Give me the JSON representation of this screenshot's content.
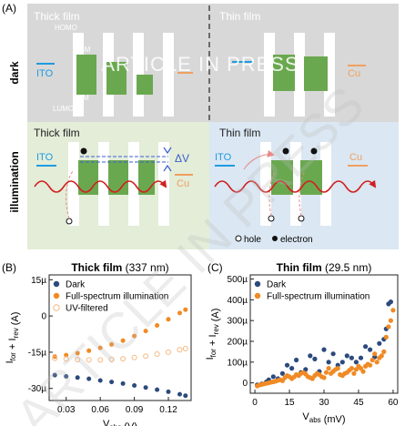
{
  "panel_a": {
    "label": "(A)",
    "row_dark": "dark",
    "row_illum": "illumination",
    "thick_title": "Thick film",
    "thin_title": "Thin film",
    "homo": "HOMO",
    "vbm": "VBM",
    "cbm": "CBM",
    "lumo": "LUMO",
    "ito": "ITO",
    "cu": "Cu",
    "delta_v": "ΔV",
    "legend_hole": "hole",
    "legend_electron": "electron",
    "watermark_center": "ARTICLE IN PRESS",
    "watermark_diag": "ARTICLE IN PRESS",
    "colors": {
      "dark_bg": "#d8d8d8",
      "illum_thick_bg": "#e3edd8",
      "illum_thin_bg": "#dbe7f2",
      "band": "#6aa84f",
      "ito": "#1e9be0",
      "cu": "#f0a060",
      "wave": "#d02020"
    }
  },
  "chart_data": [
    {
      "panel_label": "(B)",
      "type": "scatter",
      "title": "Thick film",
      "title_suffix": "(337 nm)",
      "xlabel": "V_abs (V)",
      "ylabel": "I_for + I_rev (A)",
      "xlim": [
        0.015,
        0.14
      ],
      "ylim": [
        -35,
        17
      ],
      "xticks": [
        "0.03",
        "0.06",
        "0.09",
        "0.12"
      ],
      "xtick_values": [
        0.03,
        0.06,
        0.09,
        0.12
      ],
      "yticks": [
        "15µ",
        "0",
        "-15µ",
        "-30µ"
      ],
      "ytick_values": [
        15,
        0,
        -15,
        -30
      ],
      "legend_position": "top-left",
      "series": [
        {
          "name": "Dark",
          "color": "#2c4a7c",
          "marker": "filled",
          "x": [
            0.02,
            0.03,
            0.04,
            0.05,
            0.06,
            0.07,
            0.08,
            0.09,
            0.1,
            0.11,
            0.12,
            0.13,
            0.135
          ],
          "y": [
            -24.5,
            -25.0,
            -25.5,
            -26.0,
            -26.7,
            -27.3,
            -28.0,
            -28.8,
            -29.6,
            -30.5,
            -31.4,
            -32.4,
            -33.0
          ]
        },
        {
          "name": "Full-spectrum illumination",
          "color": "#f08a24",
          "marker": "filled",
          "x": [
            0.02,
            0.03,
            0.04,
            0.05,
            0.06,
            0.07,
            0.08,
            0.09,
            0.1,
            0.11,
            0.12,
            0.13,
            0.135
          ],
          "y": [
            -16.8,
            -16.2,
            -15.4,
            -14.4,
            -13.2,
            -11.8,
            -10.2,
            -8.3,
            -6.2,
            -3.9,
            -1.4,
            1.2,
            2.6
          ]
        },
        {
          "name": "UV-filtered",
          "color": "#f5b880",
          "marker": "open",
          "x": [
            0.02,
            0.03,
            0.04,
            0.05,
            0.06,
            0.07,
            0.08,
            0.09,
            0.1,
            0.11,
            0.12,
            0.13,
            0.135
          ],
          "y": [
            -17.5,
            -17.8,
            -18.1,
            -18.2,
            -18.2,
            -18.0,
            -17.7,
            -17.2,
            -16.6,
            -15.8,
            -15.0,
            -14.0,
            -13.5
          ]
        }
      ]
    },
    {
      "panel_label": "(C)",
      "type": "scatter",
      "title": "Thin film",
      "title_suffix": "(29.5 nm)",
      "xlabel": "V_abs (mV)",
      "ylabel": "I_for + I_rev (A)",
      "xlim": [
        -2,
        62
      ],
      "ylim": [
        -50,
        520
      ],
      "xticks": [
        "0",
        "15",
        "30",
        "45",
        "60"
      ],
      "xtick_values": [
        0,
        15,
        30,
        45,
        60
      ],
      "yticks": [
        "0",
        "100µ",
        "200µ",
        "300µ",
        "400µ",
        "500µ"
      ],
      "ytick_values": [
        0,
        100,
        200,
        300,
        400,
        500
      ],
      "legend_position": "top-left",
      "series": [
        {
          "name": "Dark",
          "color": "#2c4a7c",
          "marker": "filled",
          "x": [
            1,
            3,
            5,
            6,
            8,
            10,
            12,
            14,
            16,
            18,
            20,
            22,
            24,
            26,
            28,
            30,
            32,
            34,
            36,
            38,
            40,
            42,
            44,
            46,
            48,
            50,
            52,
            54,
            56,
            57,
            58,
            59
          ],
          "y": [
            -10,
            -5,
            5,
            15,
            30,
            20,
            45,
            85,
            70,
            110,
            50,
            65,
            130,
            115,
            55,
            160,
            100,
            140,
            85,
            100,
            130,
            120,
            100,
            120,
            175,
            160,
            125,
            190,
            210,
            260,
            380,
            390
          ]
        },
        {
          "name": "Full-spectrum illumination",
          "color": "#f08a24",
          "marker": "filled",
          "x": [
            1,
            2,
            3,
            4,
            5,
            6,
            7,
            8,
            9,
            10,
            11,
            12,
            13,
            14,
            15,
            16,
            17,
            18,
            19,
            20,
            21,
            22,
            23,
            24,
            25,
            26,
            27,
            28,
            29,
            30,
            31,
            32,
            33,
            34,
            35,
            36,
            37,
            38,
            39,
            40,
            41,
            42,
            43,
            44,
            45,
            46,
            47,
            48,
            49,
            50,
            51,
            52,
            53,
            54,
            55,
            56,
            57,
            58,
            59,
            60
          ],
          "y": [
            -15,
            -10,
            -8,
            -5,
            -2,
            0,
            3,
            5,
            8,
            12,
            15,
            10,
            25,
            35,
            30,
            20,
            28,
            40,
            35,
            45,
            50,
            42,
            30,
            25,
            20,
            35,
            45,
            40,
            30,
            25,
            50,
            70,
            45,
            55,
            65,
            70,
            40,
            35,
            45,
            50,
            60,
            70,
            45,
            65,
            80,
            70,
            55,
            80,
            90,
            85,
            110,
            140,
            100,
            120,
            130,
            150,
            220,
            270,
            300,
            350
          ]
        }
      ]
    }
  ]
}
